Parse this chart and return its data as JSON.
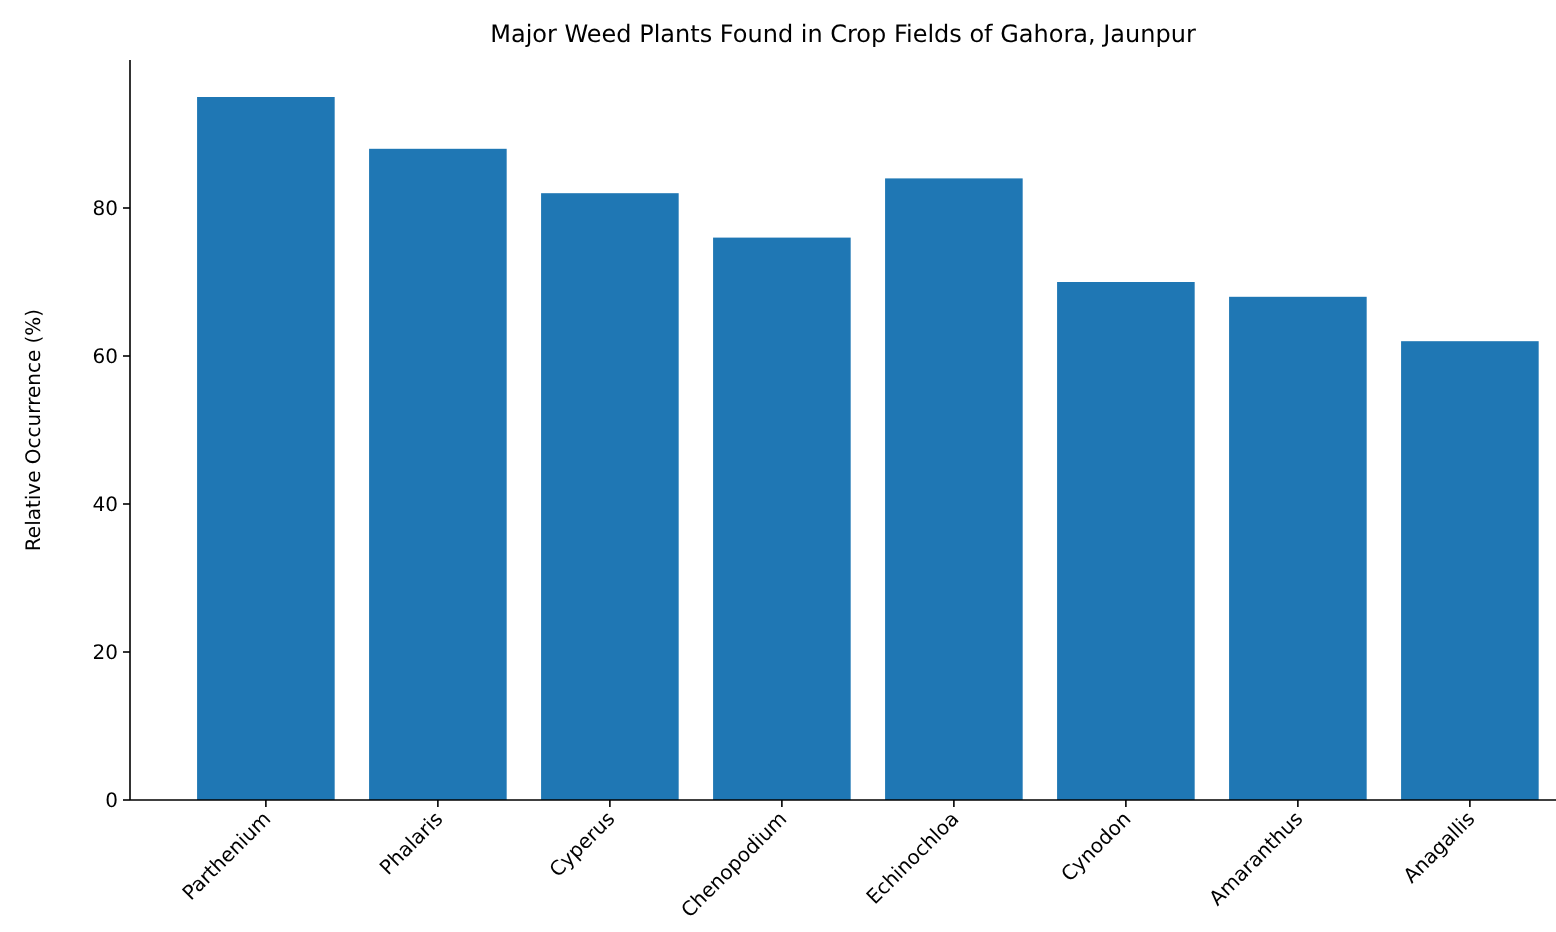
{
  "chart_data": {
    "type": "bar",
    "title": "Major Weed Plants Found in Crop Fields of Gahora, Jaunpur",
    "ylabel": "Relative Occurrence (%)",
    "categories": [
      "Parthenium",
      "Phalaris",
      "Cyperus",
      "Chenopodium",
      "Echinochloa",
      "Cynodon",
      "Amaranthus",
      "Anagallis"
    ],
    "values": [
      95,
      88,
      82,
      76,
      84,
      70,
      68,
      62
    ],
    "color": "#1f77b4",
    "ylim": [
      0,
      100
    ],
    "yticks": [
      0,
      20,
      40,
      60,
      80
    ],
    "grid": false
  }
}
